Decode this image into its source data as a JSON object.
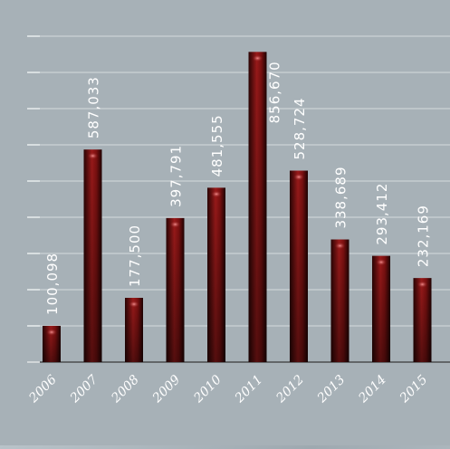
{
  "chart_data": {
    "type": "bar",
    "categories": [
      "2006",
      "2007",
      "2008",
      "2009",
      "2010",
      "2011",
      "2012",
      "2013",
      "2014",
      "2015"
    ],
    "values": [
      100098,
      587033,
      177500,
      397791,
      481555,
      856670,
      528724,
      338689,
      293412,
      232169
    ],
    "value_labels": [
      "100,098",
      "587,033",
      "177,500",
      "397,791",
      "481,555",
      "856,670",
      "528,724",
      "338,689",
      "293,412",
      "232,169"
    ],
    "title": "",
    "xlabel": "",
    "ylabel": "",
    "ylim": [
      0,
      900000
    ],
    "grid": true,
    "legend": "none",
    "bar_color": "#8a1414",
    "background_color": "#a7b1b7"
  }
}
